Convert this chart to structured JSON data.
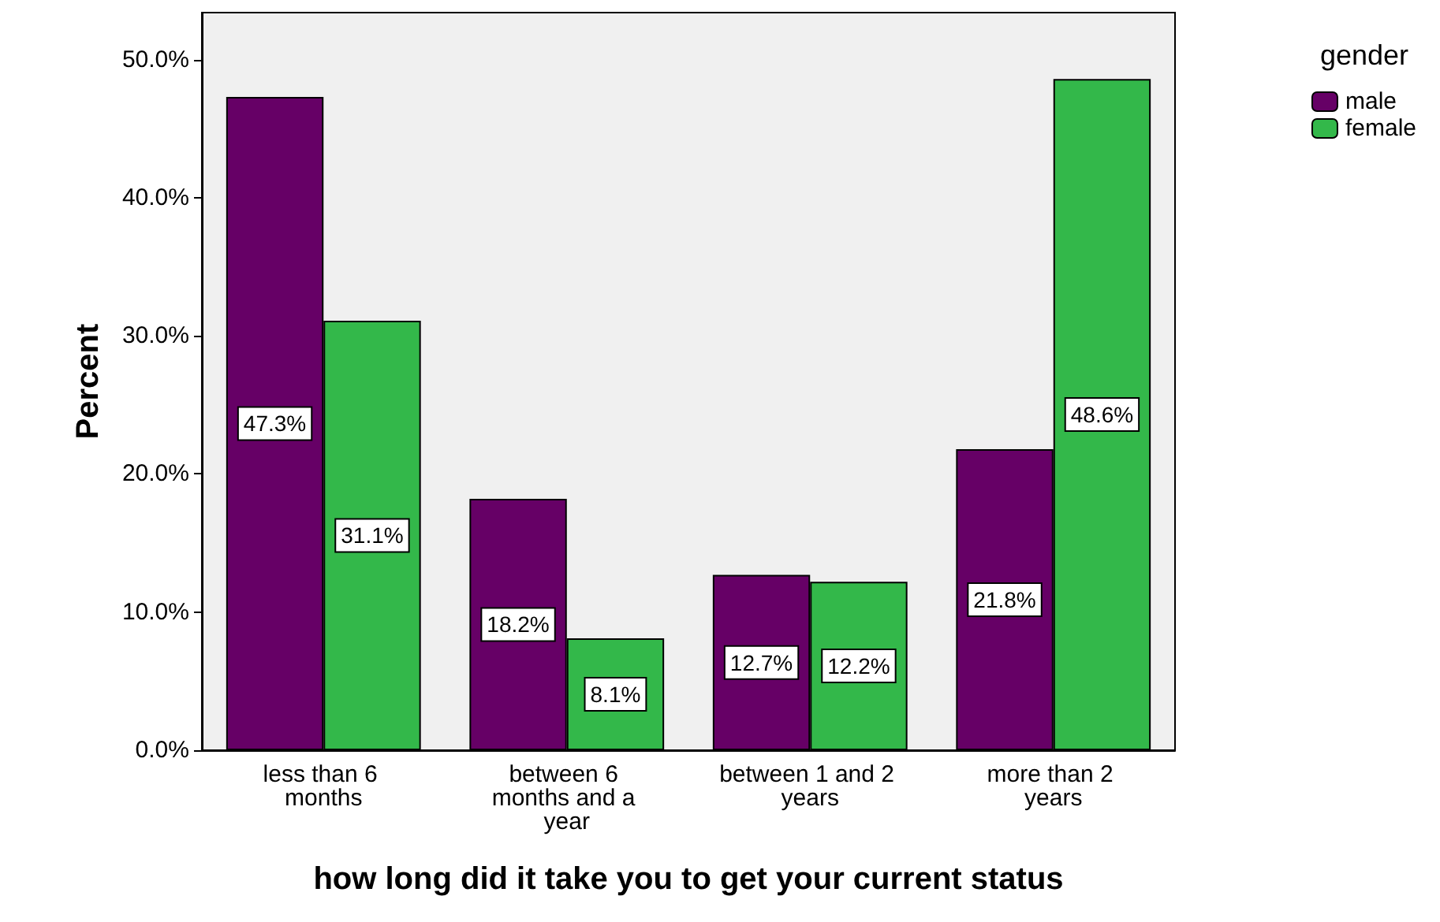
{
  "chart_data": {
    "type": "bar",
    "xlabel": "how long did it take you to get your current status",
    "ylabel": "Percent",
    "legend_title": "gender",
    "categories": [
      "less than 6 months",
      "between 6 months and a year",
      "between 1 and 2 years",
      "more than 2 years"
    ],
    "series": [
      {
        "name": "male",
        "color": "#660066",
        "values": [
          47.3,
          18.2,
          12.7,
          21.8
        ],
        "value_labels": [
          "47.3%",
          "18.2%",
          "12.7%",
          "21.8%"
        ]
      },
      {
        "name": "female",
        "color": "#33b84a",
        "values": [
          31.1,
          8.1,
          12.2,
          48.6
        ],
        "value_labels": [
          "31.1%",
          "8.1%",
          "12.2%",
          "48.6%"
        ]
      }
    ],
    "ylim": [
      0,
      53.4
    ],
    "yticks": [
      {
        "value": 0,
        "label": "0.0%"
      },
      {
        "value": 10,
        "label": "10.0%"
      },
      {
        "value": 20,
        "label": "20.0%"
      },
      {
        "value": 30,
        "label": "30.0%"
      },
      {
        "value": 40,
        "label": "40.0%"
      },
      {
        "value": 50,
        "label": "50.0%"
      }
    ],
    "legend": "top right",
    "grid": false
  }
}
